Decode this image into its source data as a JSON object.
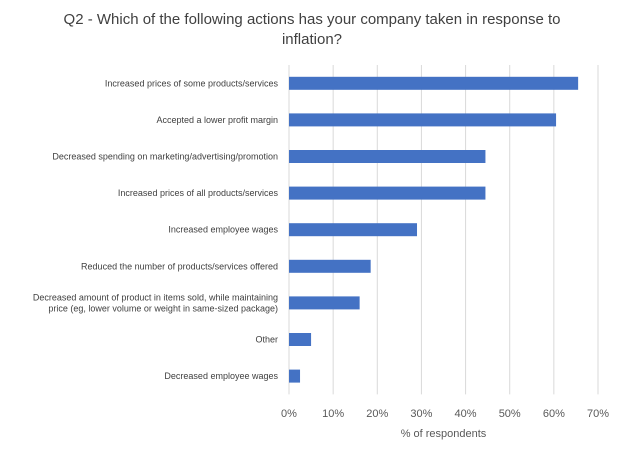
{
  "chart_data": {
    "type": "bar",
    "orientation": "horizontal",
    "title": "Q2 - Which of the following actions has your company taken in response to inflation?",
    "xlabel": "% of respondents",
    "ylabel": "",
    "xlim": [
      0,
      70
    ],
    "x_ticks": [
      "0%",
      "10%",
      "20%",
      "30%",
      "40%",
      "50%",
      "60%",
      "70%"
    ],
    "grid": "vertical",
    "bar_color": "#4472c4",
    "categories": [
      [
        "Increased prices of some products/services"
      ],
      [
        "Accepted a lower profit margin"
      ],
      [
        "Decreased spending on marketing/advertising/promotion"
      ],
      [
        "Increased prices of all products/services"
      ],
      [
        "Increased employee wages"
      ],
      [
        "Reduced the number of products/services offered"
      ],
      [
        "Decreased amount of product in items sold, while maintaining",
        "price (eg, lower volume or weight in same-sized package)"
      ],
      [
        "Other"
      ],
      [
        "Decreased employee wages"
      ]
    ],
    "values": [
      65.5,
      60.5,
      44.5,
      44.5,
      29,
      18.5,
      16,
      5,
      2.5
    ]
  }
}
